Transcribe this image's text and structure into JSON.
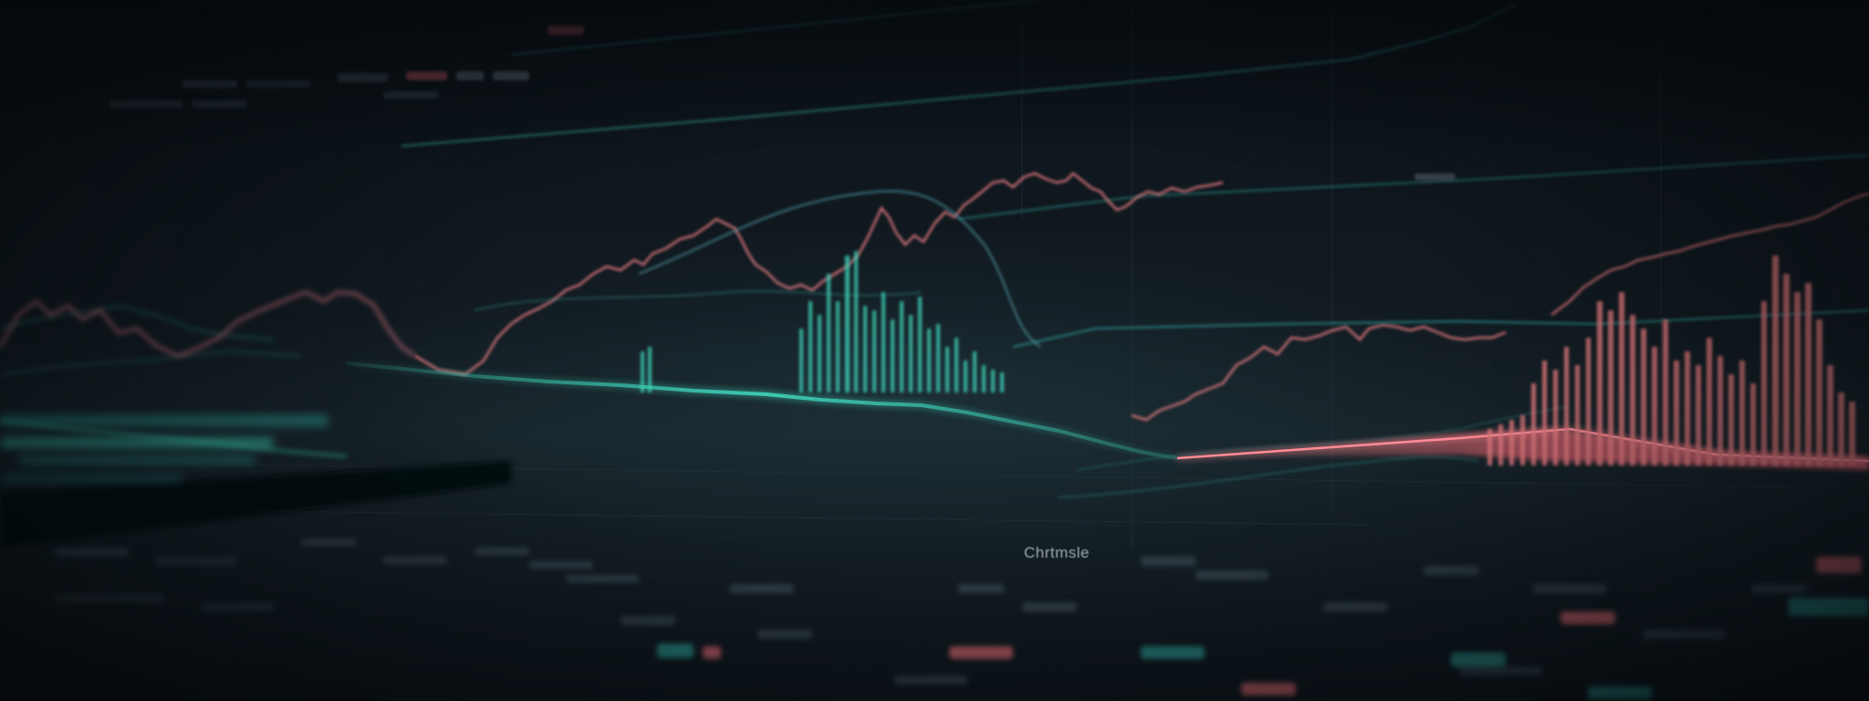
{
  "scene": {
    "description_kind": "blurred photograph of a financial analytics monitor",
    "screen_label": "Chrtmsle"
  },
  "colors": {
    "background": "#0c1218",
    "teal": "#3fd3b9",
    "teal_dim": "#2a8c86",
    "coral": "#e27a7f",
    "coral_bright": "#ff6b7a",
    "grid": "#26343c",
    "text_dim": "#6b7a82"
  }
}
